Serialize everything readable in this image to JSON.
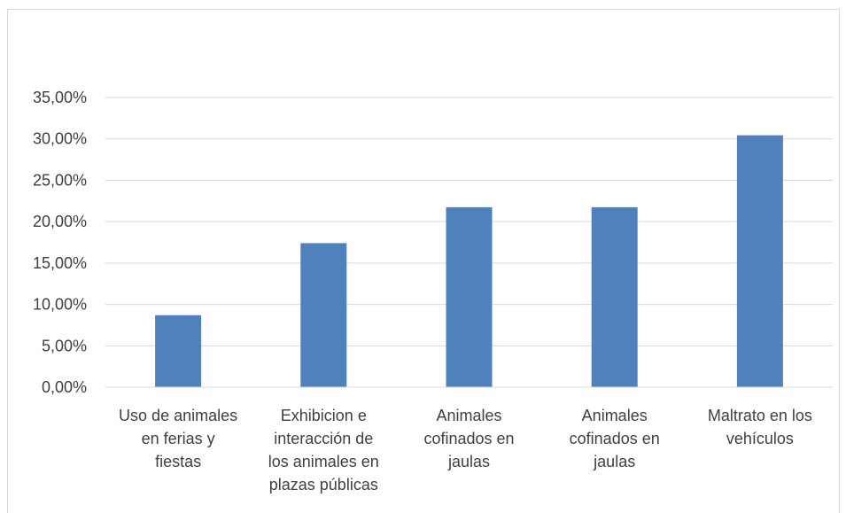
{
  "chart_data": {
    "type": "bar",
    "categories": [
      [
        "Uso de animales",
        "en ferias y",
        "fiestas"
      ],
      [
        "Exhibicion e",
        "interacción de",
        "los animales en",
        "plazas públicas"
      ],
      [
        "Animales",
        "cofinados en",
        "jaulas"
      ],
      [
        "Animales",
        "cofinados en",
        "jaulas"
      ],
      [
        "Maltrato en los",
        "vehículos"
      ]
    ],
    "values": [
      8.7,
      17.4,
      21.74,
      21.74,
      30.43
    ],
    "ylim": [
      0,
      35
    ],
    "y_ticks": [
      "0,00%",
      "5,00%",
      "10,00%",
      "15,00%",
      "20,00%",
      "25,00%",
      "30,00%",
      "35,00%"
    ],
    "grid": true,
    "legend": "none",
    "title": "",
    "xlabel": "",
    "ylabel": "",
    "colors": {
      "bar": "#4f81bd",
      "grid": "#d9d9d9",
      "text": "#404040"
    }
  }
}
